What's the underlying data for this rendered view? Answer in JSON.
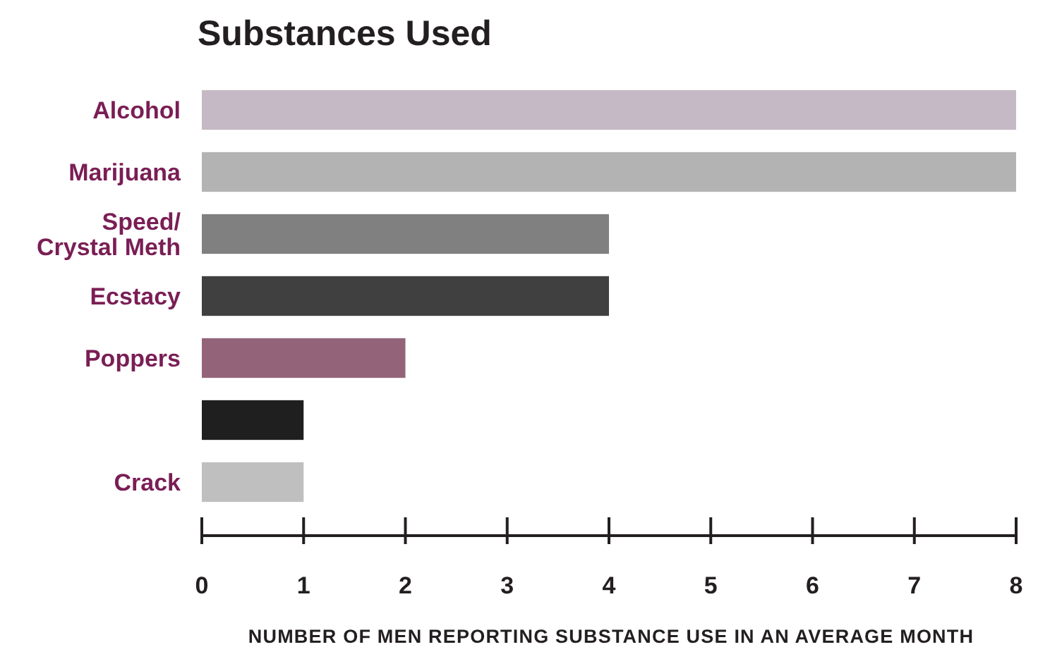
{
  "chart_data": {
    "type": "bar",
    "orientation": "horizontal",
    "title": "Substances Used",
    "xlabel": "NUMBER OF MEN REPORTING SUBSTANCE USE IN AN AVERAGE MONTH",
    "categories": [
      "Alcohol",
      "Marijuana",
      "Speed/ Crystal Meth",
      "Ecstacy",
      "Poppers",
      null,
      "Crack"
    ],
    "values": [
      8,
      8,
      4,
      4,
      2,
      1,
      1
    ],
    "colors": [
      "#c4b9c4",
      "#b3b3b3",
      "#808080",
      "#404040",
      "#936479",
      "#1f1f1f",
      "#bfbfbf"
    ],
    "xlim": [
      0,
      8
    ],
    "xticks": [
      0,
      1,
      2,
      3,
      4,
      5,
      6,
      7,
      8
    ],
    "grid": false
  }
}
